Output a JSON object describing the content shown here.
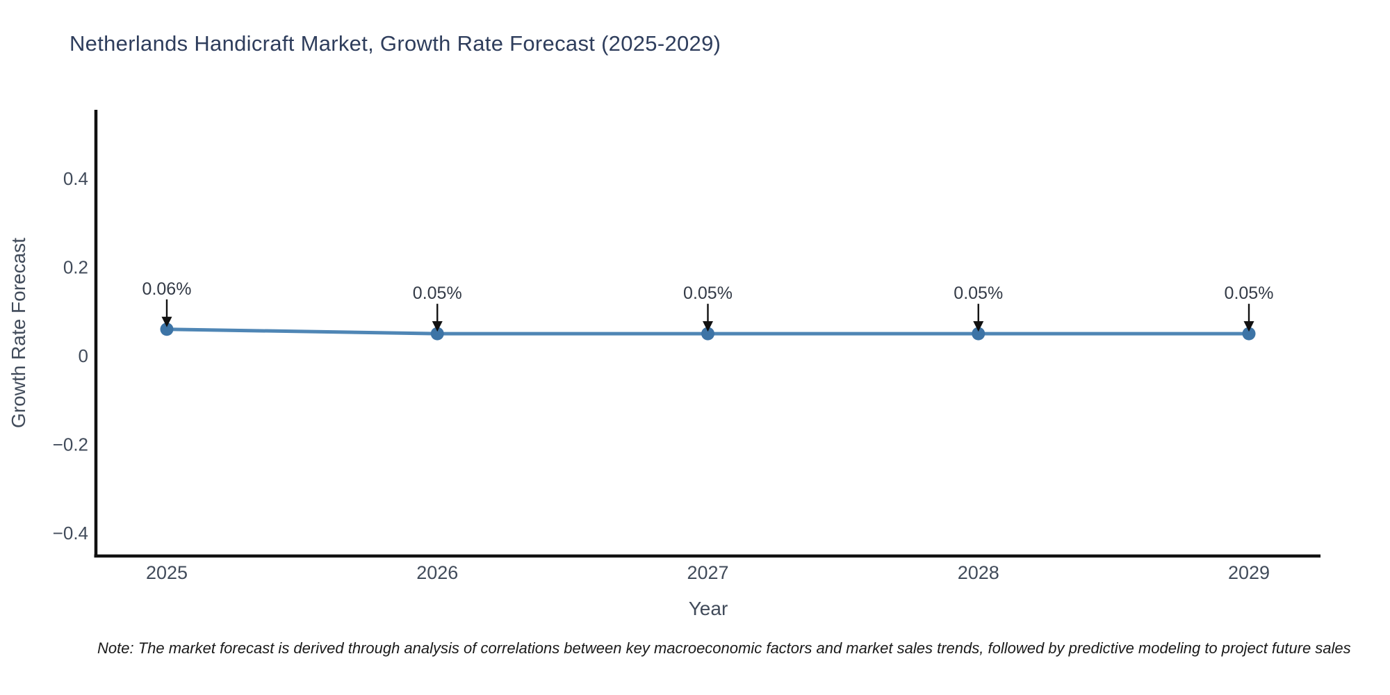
{
  "chart_data": {
    "type": "line",
    "title": "Netherlands Handicraft Market, Growth Rate Forecast (2025-2029)",
    "xlabel": "Year",
    "ylabel": "Growth Rate Forecast",
    "categories": [
      "2025",
      "2026",
      "2027",
      "2028",
      "2029"
    ],
    "values": [
      0.06,
      0.05,
      0.05,
      0.05,
      0.05
    ],
    "point_labels": [
      "0.06%",
      "0.05%",
      "0.05%",
      "0.05%",
      "0.05%"
    ],
    "yticks": [
      0.4,
      0.2,
      0,
      -0.2,
      -0.4
    ],
    "ytick_labels": [
      "0.4",
      "0.2",
      "0",
      "−0.2",
      "−0.4"
    ],
    "ylim": [
      -0.46,
      0.55
    ],
    "grid": false,
    "legend": "none",
    "annotation_style": "value label above point with downward black arrow"
  },
  "colors": {
    "title": "#2e3d5c",
    "tick_label": "#414b5a",
    "line": "#4f86b5",
    "marker": "#3d74a6",
    "axis": "#111111",
    "arrow": "#111111",
    "annotation_text": "#333a46",
    "note_text": "#1a1a1a",
    "background": "#ffffff"
  },
  "note": {
    "text": "Note: The market forecast is derived through analysis of correlations between key macroeconomic factors and market sales trends, followed by predictive modeling to project future sales"
  }
}
